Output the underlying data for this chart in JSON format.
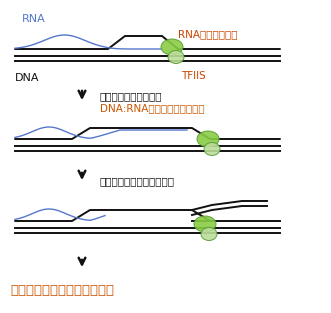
{
  "bg_color": "#ffffff",
  "rna_color": "#5577cc",
  "dna_color": "#111111",
  "arrow_color": "#111111",
  "label_rna": "RNA",
  "label_dna": "DNA",
  "label_tfiis": "TFIIS",
  "label_rnap": "RNAポリメラーゼ",
  "label_step1": "染色体結合因子の解離",
  "label_step2": "DNA:RNAハイブリッドの形成",
  "label_step3": "反復配列どうしの相互作用",
  "label_final": "反復配列を介した染色体異常",
  "label_rna_color": "#5577cc",
  "label_rnap_color": "#cc4400",
  "label_tfiis_color": "#cc4400",
  "label_step1_color": "#111111",
  "label_step2_color": "#cc5500",
  "label_step3_color": "#111111",
  "label_final_color": "#cc5500",
  "green_dark": "#559933",
  "green_mid": "#88cc44",
  "green_light": "#bbdd99"
}
